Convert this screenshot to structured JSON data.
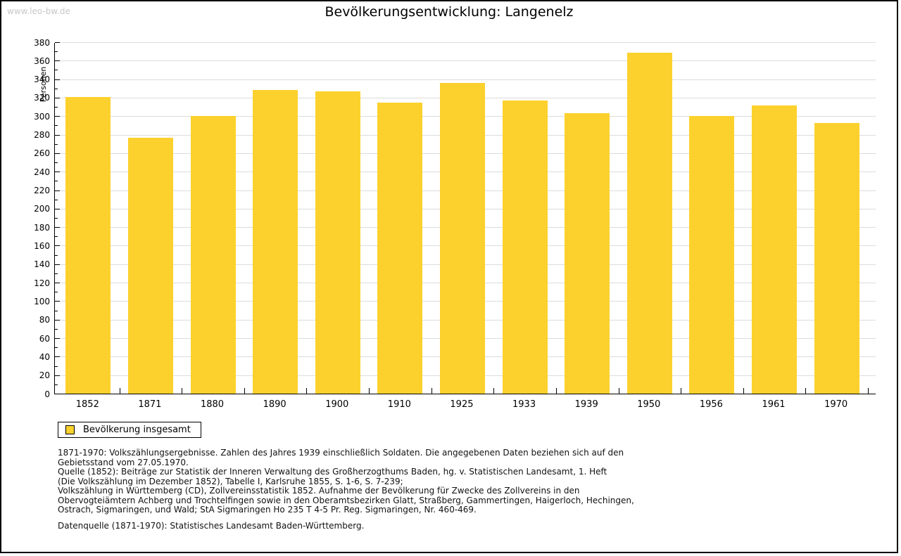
{
  "page": {
    "watermark": "www.leo-bw.de",
    "title": "Bevölkerungsentwicklung: Langenelz"
  },
  "chart_data": {
    "type": "bar",
    "title": "Bevölkerungsentwicklung: Langenelz",
    "xlabel": "",
    "ylabel": "Personen",
    "categories": [
      "1852",
      "1871",
      "1880",
      "1890",
      "1900",
      "1910",
      "1925",
      "1933",
      "1939",
      "1950",
      "1956",
      "1961",
      "1970"
    ],
    "values": [
      321,
      277,
      300,
      328,
      327,
      315,
      336,
      317,
      303,
      369,
      300,
      312,
      293
    ],
    "ylim": [
      0,
      380
    ],
    "ytick_major": 20,
    "ytick_minor": 10,
    "grid": true,
    "legend_label": "Bevölkerung insgesamt",
    "legend_position": "bottom-left",
    "bar_color": "#fcd12d"
  },
  "colors": {
    "bar": "#fcd12d",
    "grid": "#dcdcdc",
    "watermark": "#c8c8c8",
    "axis": "#000000"
  },
  "footnotes": {
    "lines": [
      "1871-1970: Volkszählungsergebnisse. Zahlen des Jahres 1939 einschließlich Soldaten. Die angegebenen Daten beziehen sich auf den",
      "Gebietsstand vom 27.05.1970.",
      "Quelle (1852): Beiträge zur Statistik der Inneren Verwaltung des Großherzogthums Baden, hg. v. Statistischen Landesamt, 1. Heft",
      "(Die Volkszählung im Dezember 1852), Tabelle I, Karlsruhe 1855, S. 1-6, S. 7-239;",
      "Volkszählung in Württemberg (CD), Zollvereinsstatistik 1852. Aufnahme der Bevölkerung für Zwecke des Zollvereins in den",
      "Obervogteiämtern Achberg und Trochtelfingen sowie in den Oberamtsbezirken Glatt, Straßberg, Gammertingen, Haigerloch, Hechingen,",
      "Ostrach, Sigmaringen, und Wald; StA Sigmaringen Ho 235 T 4-5 Pr. Reg. Sigmaringen, Nr. 460-469."
    ],
    "datasource": "Datenquelle (1871-1970): Statistisches Landesamt Baden-Württemberg."
  }
}
